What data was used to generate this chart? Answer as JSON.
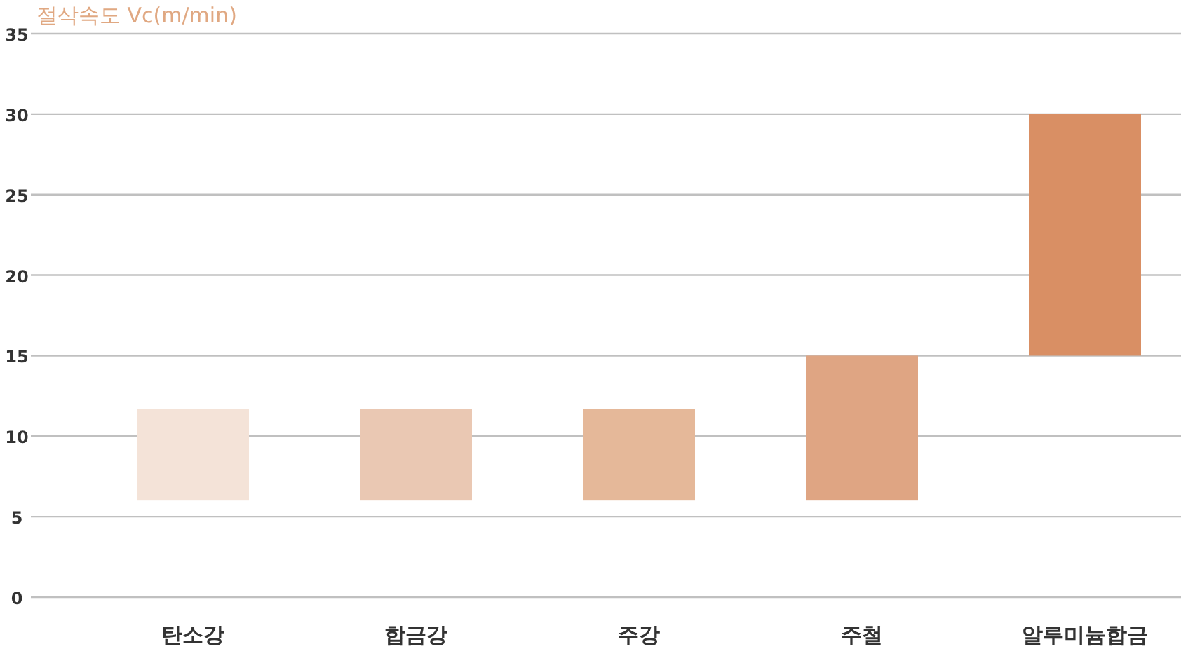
{
  "chart_data": {
    "type": "bar",
    "ylabel": "절삭속도 Vc(m/min)",
    "categories": [
      "탄소강",
      "합금강",
      "주강",
      "주철",
      "알루미늄합금"
    ],
    "base": [
      6,
      6,
      6,
      6,
      15
    ],
    "values": [
      5.7,
      5.7,
      5.7,
      9,
      15
    ],
    "colors": [
      "#f4e3d8",
      "#eac8b3",
      "#e5b899",
      "#dfa583",
      "#d98f64"
    ],
    "ylim": [
      0,
      35
    ],
    "yticks": [
      0,
      5,
      10,
      15,
      20,
      25,
      30,
      35
    ],
    "grid": "y"
  }
}
